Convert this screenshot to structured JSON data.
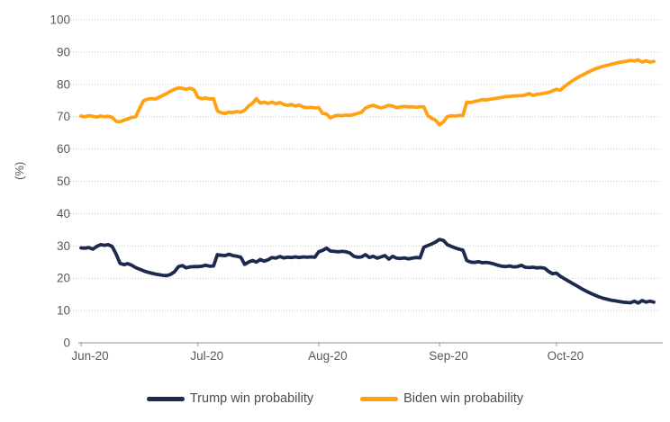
{
  "chart_data": {
    "type": "line",
    "title": "",
    "xlabel": "",
    "ylabel": "(%)",
    "ylim": [
      0,
      100
    ],
    "y_ticks": [
      0,
      10,
      20,
      30,
      40,
      50,
      60,
      70,
      80,
      90,
      100
    ],
    "grid": "horizontal-dotted",
    "legend_position": "bottom",
    "x_ticks": [
      {
        "day": 0,
        "label": "Jun-20"
      },
      {
        "day": 30,
        "label": "Jul-20"
      },
      {
        "day": 61,
        "label": "Aug-20"
      },
      {
        "day": 92,
        "label": "Sep-20"
      },
      {
        "day": 122,
        "label": "Oct-20"
      }
    ],
    "total_days": 147,
    "series": [
      {
        "name": "Trump win probability",
        "color": "#1b2a4e",
        "values": [
          29.4,
          29.3,
          29.5,
          29.0,
          29.8,
          30.4,
          30.2,
          30.4,
          29.8,
          27.5,
          24.6,
          24.2,
          24.5,
          24.0,
          23.3,
          22.8,
          22.3,
          21.9,
          21.6,
          21.3,
          21.1,
          20.9,
          20.8,
          21.2,
          22.0,
          23.6,
          23.9,
          23.2,
          23.5,
          23.6,
          23.6,
          23.7,
          24.0,
          23.7,
          23.8,
          27.3,
          27.1,
          27.0,
          27.4,
          27.0,
          26.8,
          26.5,
          24.3,
          25.0,
          25.5,
          25.0,
          25.8,
          25.3,
          25.7,
          26.4,
          26.2,
          26.7,
          26.3,
          26.5,
          26.4,
          26.6,
          26.4,
          26.6,
          26.5,
          26.6,
          26.5,
          28.2,
          28.6,
          29.3,
          28.4,
          28.3,
          28.2,
          28.3,
          28.2,
          27.8,
          26.8,
          26.5,
          26.6,
          27.3,
          26.4,
          26.8,
          26.2,
          26.6,
          27.0,
          25.9,
          26.8,
          26.2,
          26.1,
          26.3,
          26.0,
          26.2,
          26.4,
          26.3,
          29.6,
          30.1,
          30.6,
          31.2,
          32.0,
          31.7,
          30.4,
          29.9,
          29.4,
          29.0,
          28.7,
          25.5,
          25.0,
          24.9,
          25.1,
          24.8,
          24.9,
          24.7,
          24.4,
          24.0,
          23.7,
          23.6,
          23.8,
          23.5,
          23.6,
          24.0,
          23.4,
          23.3,
          23.4,
          23.2,
          23.3,
          23.1,
          22.1,
          21.4,
          21.6,
          20.6,
          19.9,
          19.2,
          18.5,
          17.8,
          17.1,
          16.4,
          15.8,
          15.2,
          14.7,
          14.2,
          13.8,
          13.5,
          13.2,
          13.0,
          12.8,
          12.6,
          12.5,
          12.4,
          12.9,
          12.3,
          13.1,
          12.6,
          12.9,
          12.6
        ]
      },
      {
        "name": "Biden win probability",
        "color": "#ffa113",
        "values": [
          70.2,
          70.0,
          70.3,
          70.1,
          69.9,
          70.2,
          70.0,
          70.1,
          69.8,
          68.6,
          68.4,
          68.9,
          69.3,
          69.8,
          70.0,
          72.5,
          74.9,
          75.4,
          75.6,
          75.5,
          76.0,
          76.6,
          77.2,
          77.9,
          78.5,
          78.9,
          78.8,
          78.5,
          78.8,
          78.3,
          76.0,
          75.6,
          75.8,
          75.5,
          75.6,
          71.8,
          71.2,
          71.0,
          71.4,
          71.3,
          71.6,
          71.4,
          72.0,
          73.3,
          74.2,
          75.6,
          74.2,
          74.5,
          74.1,
          74.5,
          74.0,
          74.4,
          73.8,
          73.5,
          73.8,
          73.3,
          73.6,
          73.0,
          72.8,
          72.9,
          72.7,
          72.8,
          71.0,
          70.8,
          69.6,
          70.2,
          70.4,
          70.3,
          70.5,
          70.4,
          70.7,
          71.0,
          71.4,
          72.7,
          73.2,
          73.5,
          73.1,
          72.7,
          73.1,
          73.5,
          73.3,
          72.8,
          73.0,
          73.2,
          73.0,
          73.1,
          72.9,
          73.1,
          73.0,
          70.3,
          69.5,
          68.9,
          67.5,
          68.4,
          70.0,
          70.3,
          70.2,
          70.4,
          70.3,
          74.5,
          74.4,
          74.7,
          75.0,
          75.3,
          75.2,
          75.4,
          75.6,
          75.8,
          76.0,
          76.2,
          76.3,
          76.4,
          76.5,
          76.5,
          76.7,
          77.2,
          76.6,
          76.9,
          77.1,
          77.3,
          77.5,
          78.0,
          78.5,
          78.2,
          79.3,
          80.2,
          81.0,
          81.8,
          82.5,
          83.1,
          83.7,
          84.3,
          84.8,
          85.2,
          85.6,
          85.9,
          86.2,
          86.5,
          86.8,
          87.0,
          87.2,
          87.4,
          87.3,
          87.6,
          86.9,
          87.3,
          86.9,
          87.1
        ]
      }
    ]
  }
}
